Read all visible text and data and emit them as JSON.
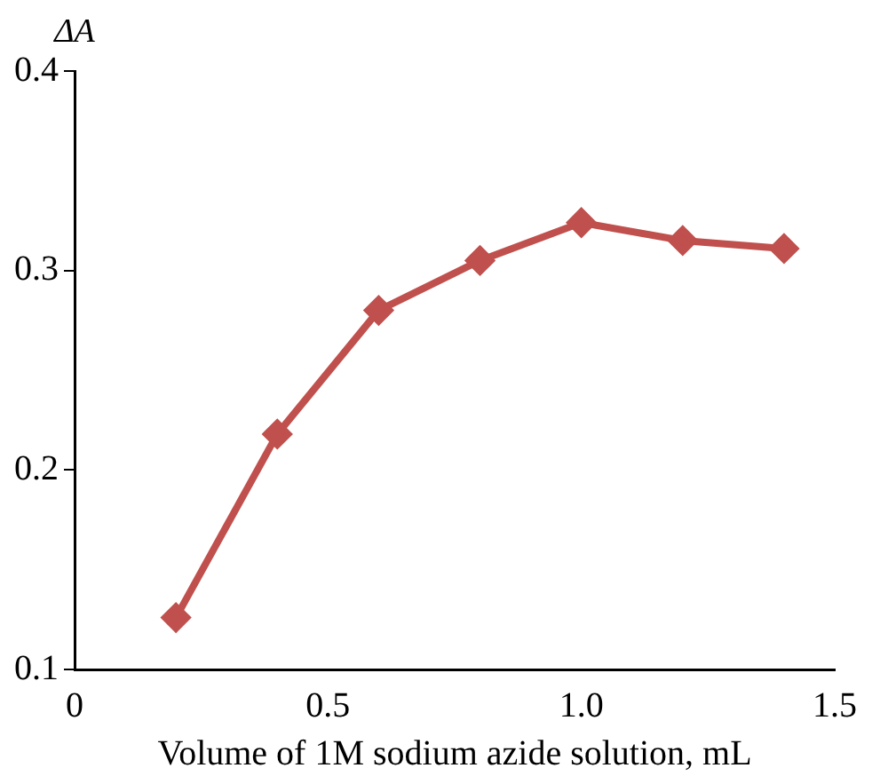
{
  "chart_data": {
    "type": "line",
    "xlabel": "Volume of 1M sodium azide solution, mL",
    "ylabel": "ΔA",
    "x": [
      0.2,
      0.4,
      0.6,
      0.8,
      1.0,
      1.2,
      1.4
    ],
    "series": [
      {
        "color": "#c0504d",
        "values": [
          0.126,
          0.218,
          0.28,
          0.305,
          0.324,
          0.315,
          0.311
        ]
      }
    ],
    "xlim": [
      0,
      1.5
    ],
    "xticks": [
      0,
      0.5,
      {
        "value": 1.0,
        "label": "1.0"
      },
      1.5
    ],
    "ylim": [
      0.1,
      0.4
    ],
    "yticks": [
      0.1,
      0.2,
      0.3,
      0.4
    ],
    "grid": false,
    "legend": false,
    "marker": "diamond",
    "line_style": "solid"
  }
}
